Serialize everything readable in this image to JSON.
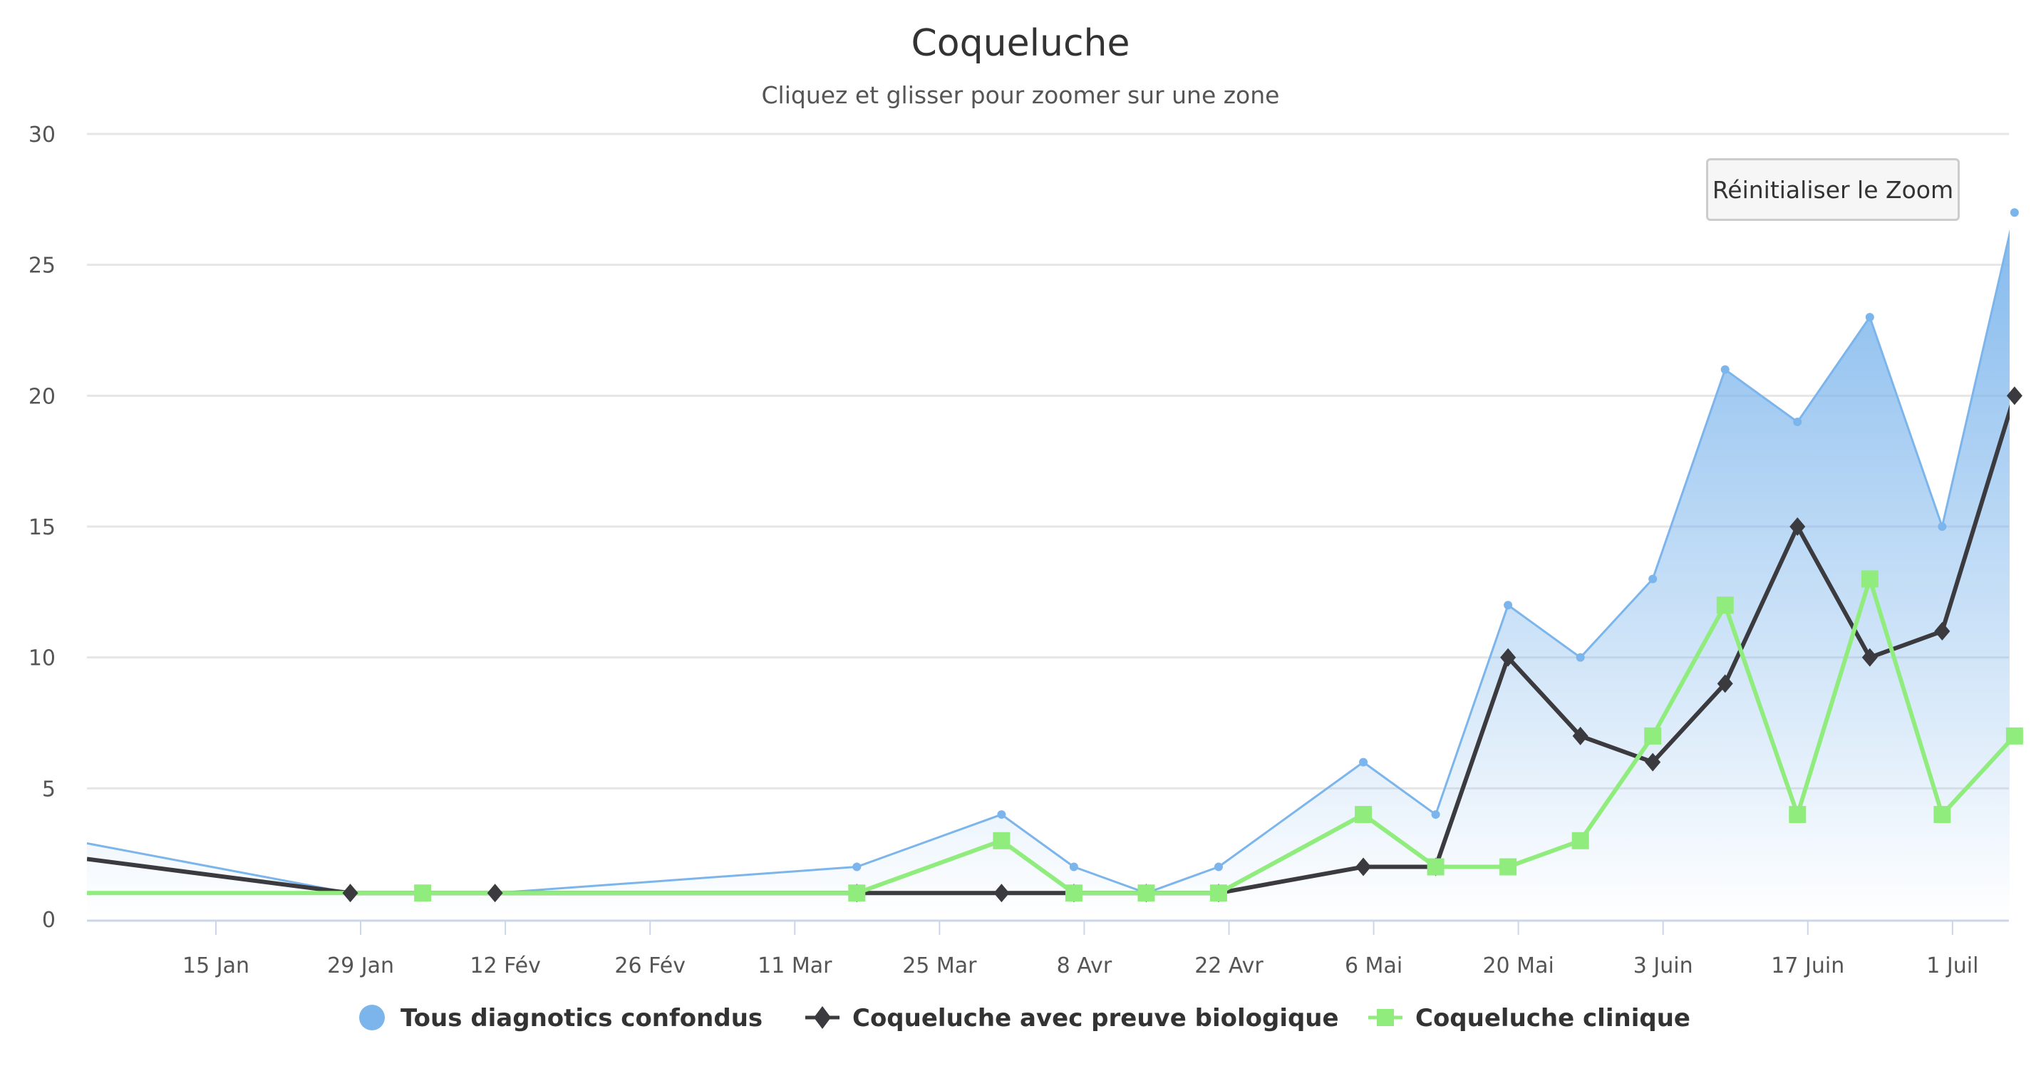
{
  "title": "Coqueluche",
  "subtitle": "Cliquez et glisser pour zoomer sur une zone",
  "reset_zoom_button": "Réinitialiser le Zoom",
  "colors": {
    "all_diagnostics": "#7cb5ec",
    "biological": "#3a3a3f",
    "clinical": "#90ed7d",
    "grid": "#e6e6e6",
    "axis": "#ccd6eb"
  },
  "chart_data": {
    "type": "line",
    "title": "Coqueluche",
    "subtitle": "Cliquez et glisser pour zoomer sur une zone",
    "xlabel": "",
    "ylabel": "",
    "ylim": [
      0,
      30
    ],
    "yticks": [
      0,
      5,
      10,
      15,
      20,
      25,
      30
    ],
    "grid": true,
    "legend_position": "bottom",
    "x_tick_labels": [
      "15 Jan",
      "29 Jan",
      "12 Fév",
      "26 Fév",
      "11 Mar",
      "25 Mar",
      "8 Avr",
      "22 Avr",
      "6 Mai",
      "20 Mai",
      "3 Juin",
      "17 Juin",
      "1 Juil"
    ],
    "x_tick_day_offsets": [
      0,
      14,
      28,
      42,
      56,
      70,
      84,
      98,
      112,
      126,
      140,
      154,
      168
    ],
    "x_range_day_offsets": [
      -12.5,
      173.5
    ],
    "series": [
      {
        "name": "Tous diagnotics confondus",
        "type": "area",
        "marker": "circle",
        "left_edge_value": 2.9,
        "x_day_offsets": [
          13,
          27,
          62,
          76,
          83,
          90,
          97,
          111,
          118,
          125,
          132,
          139,
          146,
          153,
          160,
          167,
          174
        ],
        "x": [
          "28 Jan",
          "11 Fév",
          "17 Mar",
          "31 Mar",
          "7 Avr",
          "14 Avr",
          "21 Avr",
          "5 Mai",
          "12 Mai",
          "19 Mai",
          "26 Mai",
          "2 Juin",
          "9 Juin",
          "16 Juin",
          "23 Juin",
          "30 Juin",
          "7 Juil"
        ],
        "values": [
          1,
          1,
          2,
          4,
          2,
          1,
          2,
          6,
          4,
          12,
          10,
          13,
          21,
          19,
          23,
          15,
          27
        ]
      },
      {
        "name": "Coqueluche avec preuve biologique",
        "type": "line",
        "marker": "diamond",
        "left_edge_value": 2.3,
        "x_day_offsets": [
          13,
          27,
          62,
          76,
          83,
          90,
          97,
          111,
          118,
          125,
          132,
          139,
          146,
          153,
          160,
          167,
          174
        ],
        "x": [
          "28 Jan",
          "11 Fév",
          "17 Mar",
          "31 Mar",
          "7 Avr",
          "14 Avr",
          "21 Avr",
          "5 Mai",
          "12 Mai",
          "19 Mai",
          "26 Mai",
          "2 Juin",
          "9 Juin",
          "16 Juin",
          "23 Juin",
          "30 Juin",
          "7 Juil"
        ],
        "values": [
          1,
          1,
          1,
          1,
          1,
          1,
          1,
          2,
          2,
          10,
          7,
          6,
          9,
          15,
          10,
          11,
          20
        ]
      },
      {
        "name": "Coqueluche clinique",
        "type": "line",
        "marker": "square",
        "left_edge_value": 1,
        "x_day_offsets": [
          20,
          62,
          76,
          83,
          90,
          97,
          111,
          118,
          125,
          132,
          139,
          146,
          153,
          160,
          167,
          174
        ],
        "x": [
          "4 Fév",
          "17 Mar",
          "31 Mar",
          "7 Avr",
          "14 Avr",
          "21 Avr",
          "5 Mai",
          "12 Mai",
          "19 Mai",
          "26 Mai",
          "2 Juin",
          "9 Juin",
          "16 Juin",
          "23 Juin",
          "30 Juin",
          "7 Juil"
        ],
        "values": [
          1,
          1,
          3,
          1,
          1,
          1,
          4,
          2,
          2,
          3,
          7,
          12,
          4,
          13,
          4,
          7
        ]
      }
    ]
  },
  "legend": {
    "items": [
      {
        "label": "Tous diagnotics confondus",
        "icon": "circle-marker-icon"
      },
      {
        "label": "Coqueluche avec preuve biologique",
        "icon": "diamond-line-icon"
      },
      {
        "label": "Coqueluche clinique",
        "icon": "square-line-icon"
      }
    ]
  }
}
